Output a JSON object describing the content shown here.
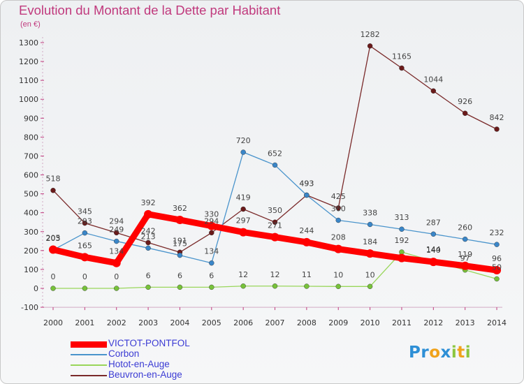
{
  "header": {
    "title": "Evolution du Montant de la Dette par Habitant",
    "subtitle": "(en €)"
  },
  "logo": {
    "letters": [
      {
        "ch": "P",
        "color": "#2e8fd6"
      },
      {
        "ch": "r",
        "color": "#2e8fd6"
      },
      {
        "ch": "o",
        "color": "#f0a21b"
      },
      {
        "ch": "x",
        "color": "#2e8fd6"
      },
      {
        "ch": "i",
        "color": "#8cc63f"
      },
      {
        "ch": "t",
        "color": "#f0a21b"
      },
      {
        "ch": "i",
        "color": "#8cc63f"
      }
    ]
  },
  "chart_data": {
    "type": "line",
    "title": "Evolution du Montant de la Dette par Habitant",
    "subtitle": "(en €)",
    "xlabel": "",
    "ylabel": "",
    "x": [
      "2000",
      "2001",
      "2002",
      "2003",
      "2004",
      "2005",
      "2006",
      "2007",
      "2008",
      "2009",
      "2010",
      "2011",
      "2012",
      "2013",
      "2014"
    ],
    "ylim": [
      -100,
      1300
    ],
    "yticks": [
      -100,
      0,
      100,
      200,
      300,
      400,
      500,
      600,
      700,
      800,
      900,
      1000,
      1100,
      1200,
      1300
    ],
    "grid": false,
    "legend_position": "bottom-left",
    "series": [
      {
        "name": "VICTOT-PONTFOL",
        "color": "#ff0000",
        "point_color": "#ff0000",
        "width": 9,
        "marker": 6,
        "values": [
          205,
          165,
          134,
          392,
          362,
          330,
          297,
          271,
          244,
          208,
          184,
          160,
          140,
          119,
          96
        ],
        "labels": [
          "205",
          "165",
          "134",
          "392",
          "362",
          "330",
          "297",
          "271",
          "244",
          "208",
          "184",
          "",
          "140",
          "119",
          "96"
        ]
      },
      {
        "name": "Corbon",
        "color": "#4a94cc",
        "point_color": "#3a86c8",
        "width": 1.3,
        "marker": 3.5,
        "values": [
          203,
          293,
          249,
          213,
          175,
          134,
          720,
          652,
          493,
          360,
          338,
          313,
          287,
          260,
          232
        ],
        "labels": [
          "203",
          "293",
          "249",
          "213",
          "175",
          "134",
          "720",
          "652",
          "493",
          "360",
          "338",
          "313",
          "287",
          "260",
          "232"
        ]
      },
      {
        "name": "Hotot-en-Auge",
        "color": "#99d65a",
        "point_color": "#77c23a",
        "width": 1.3,
        "marker": 3.5,
        "values": [
          0,
          0,
          0,
          6,
          6,
          6,
          12,
          12,
          11,
          10,
          10,
          192,
          144,
          97,
          50
        ],
        "labels": [
          "0",
          "0",
          "0",
          "6",
          "6",
          "6",
          "12",
          "12",
          "11",
          "10",
          "10",
          "192",
          "144",
          "97",
          "50"
        ]
      },
      {
        "name": "Beuvron-en-Auge",
        "color": "#7a2a2a",
        "point_color": "#6a1a1a",
        "width": 1.3,
        "marker": 3.5,
        "values": [
          518,
          345,
          294,
          242,
          191,
          294,
          419,
          350,
          493,
          425,
          1282,
          1165,
          1044,
          926,
          842
        ],
        "labels": [
          "518",
          "345",
          "294",
          "242",
          "191",
          "294",
          "419",
          "350",
          "493",
          "425",
          "1282",
          "1165",
          "1044",
          "926",
          "842"
        ]
      }
    ]
  }
}
